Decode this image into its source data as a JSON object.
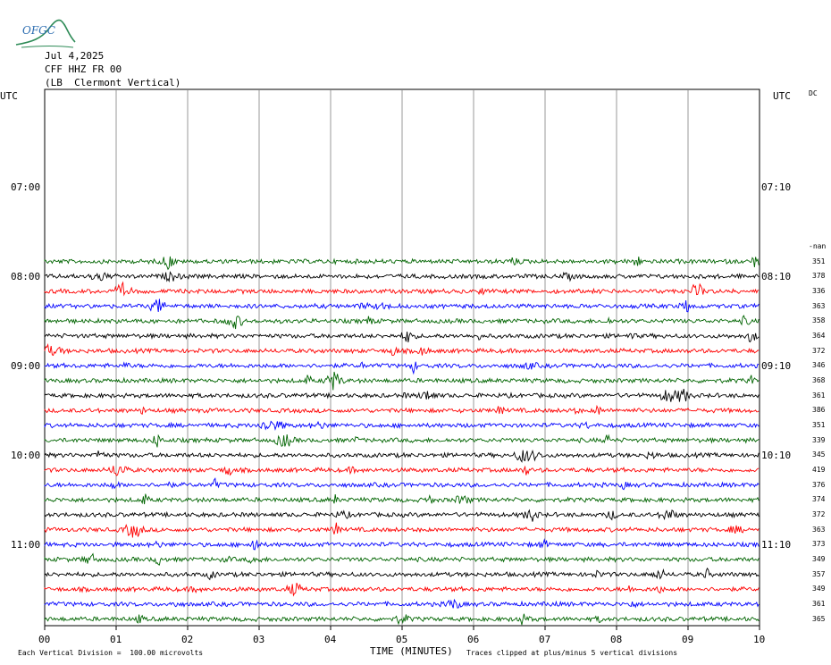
{
  "header": {
    "logo_text": "OFGC",
    "date": "Jul 4,2025",
    "station": "CFF HHZ FR 00",
    "location": "(LB  Clermont Vertical)"
  },
  "axes": {
    "left_label": "UTC",
    "right_label": "UTC",
    "dc_label": "DC",
    "left_ticks": [
      "07:00",
      "08:00",
      "09:00",
      "10:00",
      "11:00"
    ],
    "right_ticks": [
      "07:10",
      "08:10",
      "09:10",
      "10:10",
      "11:10"
    ],
    "x_ticks": [
      "00",
      "01",
      "02",
      "03",
      "04",
      "05",
      "06",
      "07",
      "08",
      "09",
      "10"
    ],
    "x_title": "TIME (MINUTES)"
  },
  "footer": {
    "scale_note": "Each Vertical Division =  100.00 microvolts",
    "clip_note": "Traces clipped at plus/minus 5 vertical divisions"
  },
  "colors": {
    "green": "#006400",
    "black": "#000000",
    "red": "#ff0000",
    "blue": "#0000ff",
    "grid": "#808080"
  },
  "chart_data": {
    "type": "line",
    "title": "CFF HHZ FR 00",
    "xlabel": "TIME (MINUTES)",
    "xlim": [
      0,
      10
    ],
    "row_start_time": "07:00",
    "minutes_per_row": 10,
    "first_trace_row": 11,
    "trace_count": 25,
    "color_cycle": [
      "green",
      "black",
      "red",
      "blue"
    ],
    "nan_label": "-nan",
    "right_values": [
      351,
      378,
      336,
      363,
      358,
      364,
      372,
      346,
      368,
      361,
      386,
      351,
      339,
      345,
      419,
      376,
      374,
      372,
      363,
      373,
      349,
      357,
      349,
      361,
      365
    ]
  }
}
